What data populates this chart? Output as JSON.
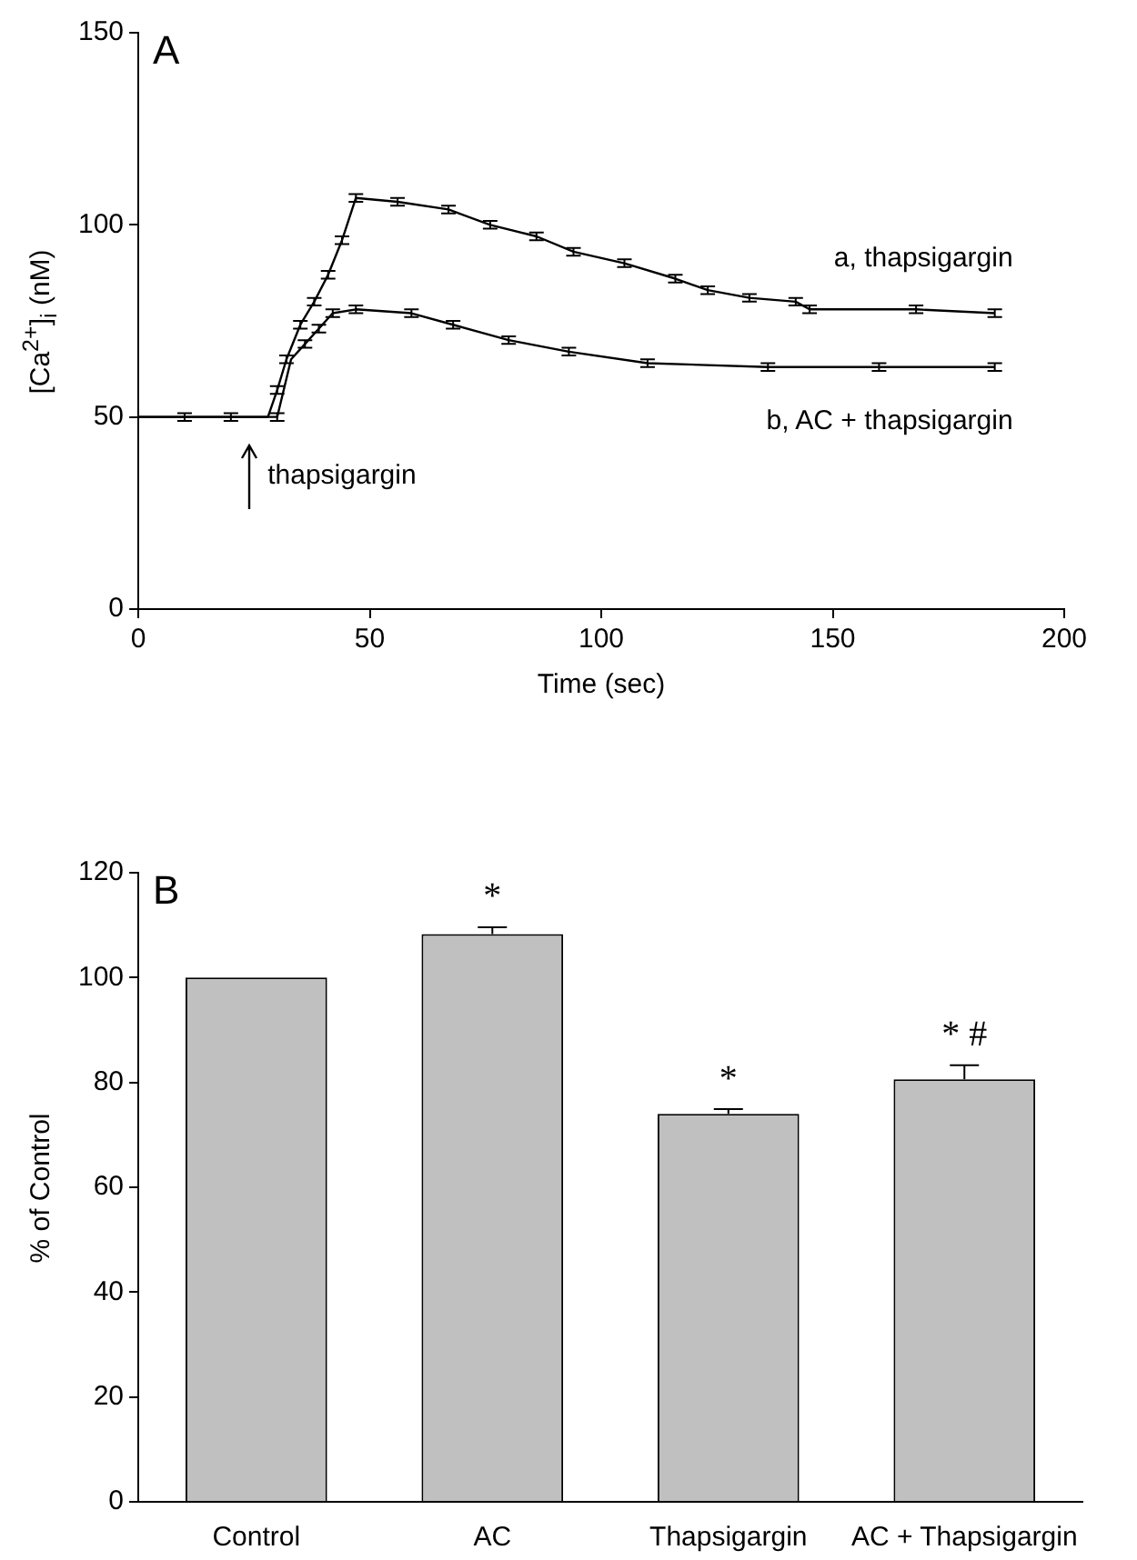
{
  "chart_data": [
    {
      "type": "line",
      "title": "A",
      "xlabel": "Time (sec)",
      "ylabel": "[Ca$^{2+}$]$_{i}$ (nM)",
      "xlim": [
        0,
        200
      ],
      "xticks": [
        0,
        50,
        100,
        150,
        200
      ],
      "ylim": [
        0,
        150
      ],
      "yticks": [
        0,
        50,
        100,
        150
      ],
      "grid": false,
      "legend": false,
      "marker": "none",
      "line_style": "solid",
      "series": [
        {
          "name": "a, thapsigargin",
          "color": "#000000",
          "x": [
            0,
            10,
            20,
            28,
            30,
            32,
            35,
            38,
            41,
            44,
            47,
            56,
            67,
            76,
            86,
            94,
            105,
            116,
            123,
            132,
            142,
            145,
            168,
            185
          ],
          "values": [
            50,
            50,
            50,
            50,
            57,
            65,
            74,
            80,
            87,
            96,
            107,
            106,
            104,
            100,
            97,
            93,
            90,
            86,
            83,
            81,
            80,
            78,
            78,
            77
          ],
          "errors": [
            null,
            1,
            1,
            null,
            1,
            1,
            1,
            1,
            1,
            1,
            1,
            1,
            1,
            1,
            1,
            1,
            1,
            1,
            1,
            1,
            1,
            1,
            1,
            1
          ]
        },
        {
          "name": "b, AC + thapsigargin",
          "color": "#000000",
          "x": [
            0,
            10,
            20,
            30,
            33,
            36,
            39,
            42,
            47,
            59,
            68,
            80,
            93,
            110,
            136,
            160,
            185
          ],
          "values": [
            50,
            50,
            50,
            50,
            65,
            69,
            73,
            77,
            78,
            77,
            74,
            70,
            67,
            64,
            63,
            63,
            63
          ],
          "errors": [
            null,
            null,
            null,
            1,
            null,
            1,
            1,
            1,
            1,
            1,
            1,
            1,
            1,
            1,
            1,
            1,
            1
          ]
        }
      ],
      "annotations": [
        "thapsigargin"
      ]
    },
    {
      "type": "bar",
      "title": "B",
      "ylabel": "% of Control",
      "categories": [
        "Control",
        "AC",
        "Thapsigargin",
        "AC + Thapsigargin"
      ],
      "values": [
        100,
        108.3,
        74,
        80.6
      ],
      "errors": [
        null,
        1.3,
        0.9,
        2.7
      ],
      "value_labels": [
        null,
        "*",
        "*",
        "* #"
      ],
      "color": "#c0c0c0",
      "ylim": [
        0,
        120
      ],
      "yticks": [
        0,
        20,
        40,
        60,
        80,
        100,
        120
      ],
      "grid": false,
      "legend": false
    }
  ]
}
